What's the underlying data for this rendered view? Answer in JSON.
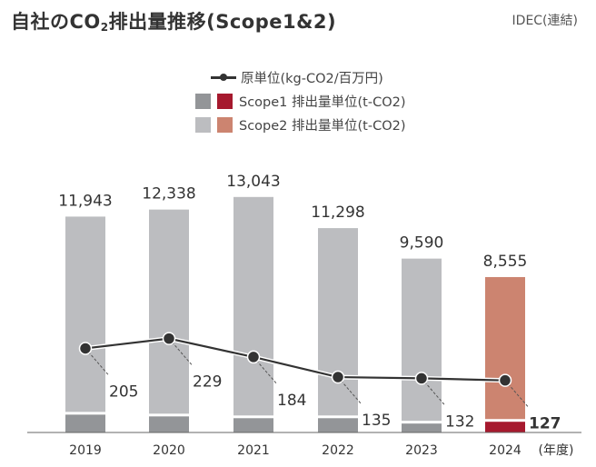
{
  "header": {
    "title_prefix": "自社のCO",
    "title_sub": "2",
    "title_suffix": "排出量推移(Scope1&2)",
    "scope_note": "IDEC(連結)"
  },
  "legend": {
    "intensity": "原単位(kg-CO2/百万円)",
    "scope1": "Scope1 排出量単位(t-CO2)",
    "scope2": "Scope2 排出量単位(t-CO2)"
  },
  "colors": {
    "scope1_past": "#939598",
    "scope2_past": "#bcbdc0",
    "scope1_current": "#a6192e",
    "scope2_current": "#cc8470",
    "line": "#333333"
  },
  "chart_data": {
    "type": "bar",
    "title": "自社のCO2排出量推移(Scope1&2)",
    "xlabel": "(年度)",
    "ylabel": "",
    "categories": [
      "2019",
      "2020",
      "2021",
      "2022",
      "2023",
      "2024"
    ],
    "totals": [
      11943,
      12338,
      13043,
      11298,
      9590,
      8555
    ],
    "total_labels": [
      "11,943",
      "12,338",
      "13,043",
      "11,298",
      "9,590",
      "8,555"
    ],
    "series": [
      {
        "name": "Scope1 排出量単位(t-CO2)",
        "type": "bar",
        "stack": "emissions",
        "values": [
          1000,
          900,
          800,
          800,
          500,
          600
        ]
      },
      {
        "name": "Scope2 排出量単位(t-CO2)",
        "type": "bar",
        "stack": "emissions",
        "values": [
          10943,
          11438,
          12243,
          10498,
          9090,
          7955
        ]
      },
      {
        "name": "原単位(kg-CO2/百万円)",
        "type": "line",
        "axis": "secondary",
        "values": [
          205,
          229,
          184,
          135,
          132,
          127
        ]
      }
    ],
    "highlight_category": "2024",
    "ylim": [
      0,
      14000
    ],
    "y2lim": [
      0,
      700
    ],
    "grid": false,
    "legend_position": "top-center"
  }
}
